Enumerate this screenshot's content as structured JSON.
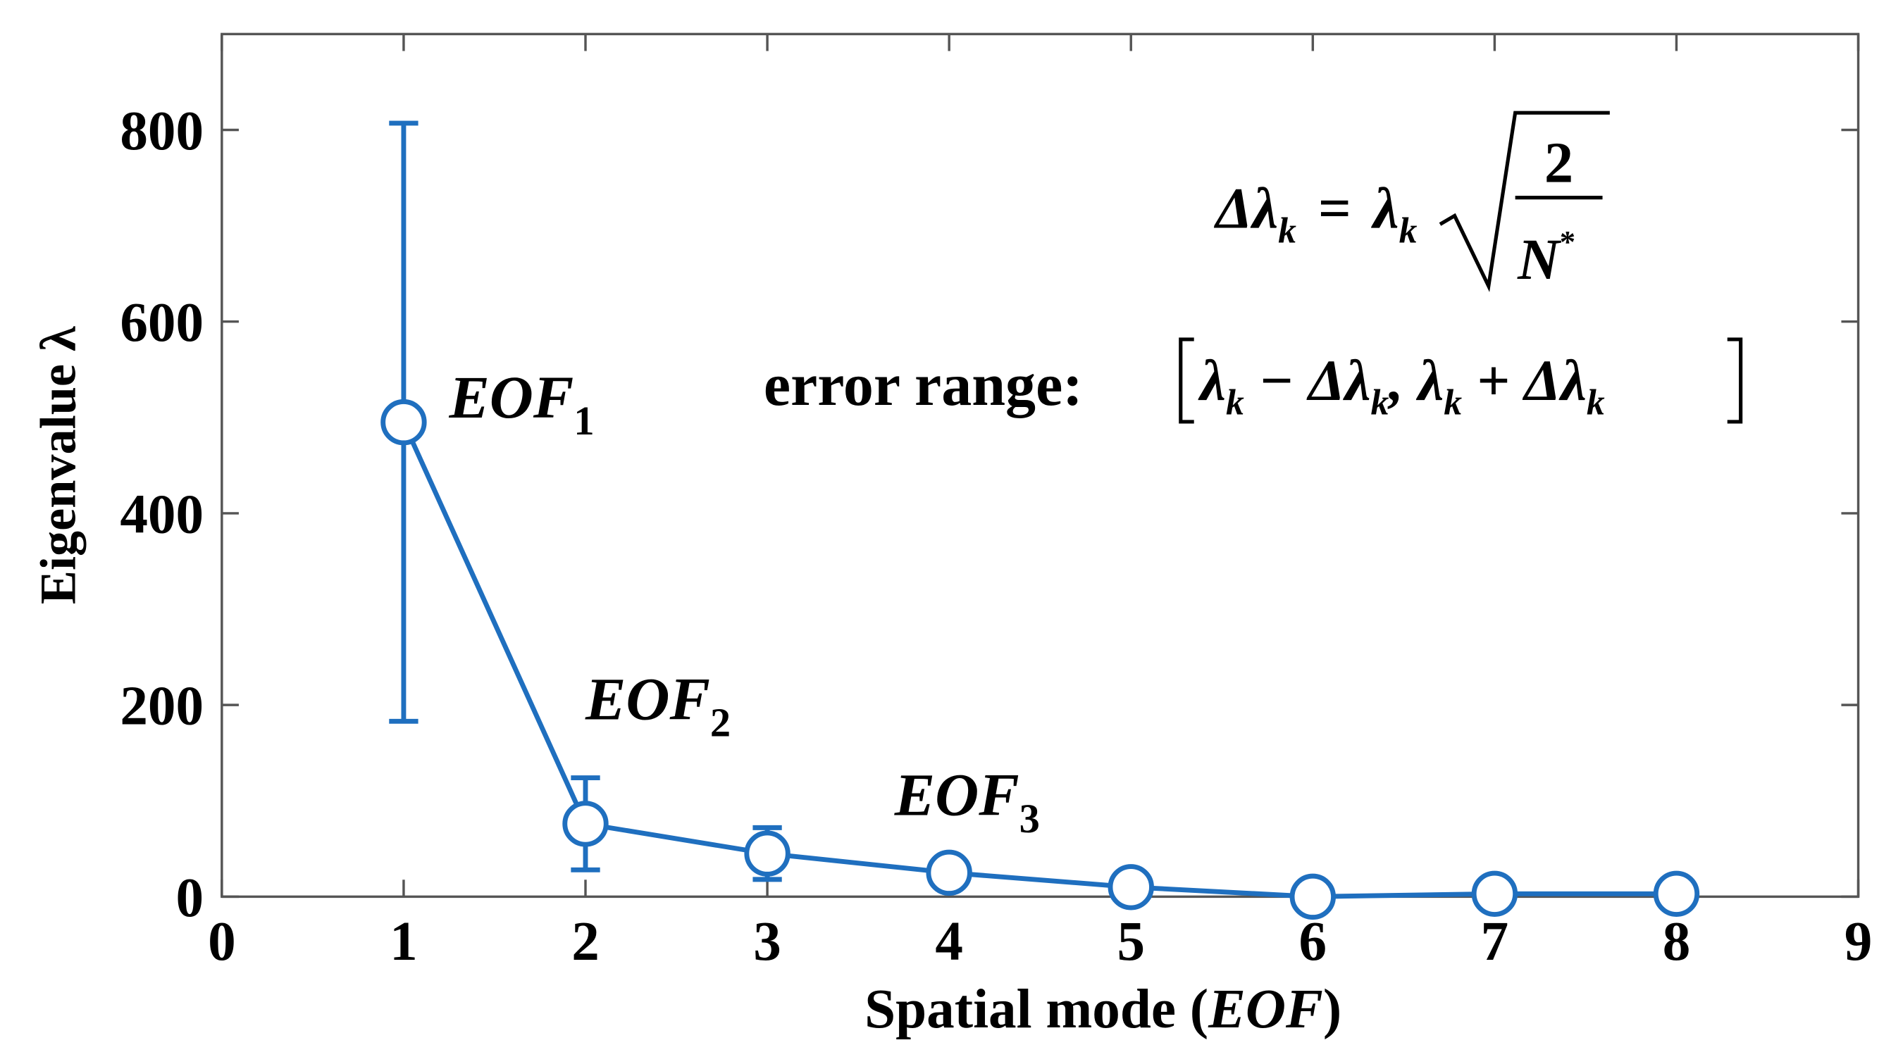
{
  "chart_data": {
    "type": "line",
    "x_label": [
      "Spatial mode (",
      "EOF",
      ")"
    ],
    "y_label": "Eigenvalue λ",
    "x": [
      1,
      2,
      3,
      4,
      5,
      6,
      7,
      8
    ],
    "series": [
      {
        "color": "#1f6fbf",
        "values": [
          495,
          76,
          45,
          25,
          10,
          0,
          3,
          3
        ],
        "errors": [
          312,
          48,
          27,
          null,
          null,
          null,
          null,
          null
        ]
      }
    ],
    "xlim": [
      0,
      9
    ],
    "xticks": [
      0,
      1,
      2,
      3,
      4,
      5,
      6,
      7,
      8,
      9
    ],
    "ylim": [
      0,
      900
    ],
    "yticks": [
      0,
      200,
      400,
      600,
      800
    ],
    "annotations": [
      {
        "text": "EOF",
        "sub": "1",
        "x": 1.25,
        "y": 500
      },
      {
        "text": "EOF",
        "sub": "2",
        "x": 2.0,
        "y": 185
      },
      {
        "text": "EOF",
        "sub": "3",
        "x": 3.7,
        "y": 85
      }
    ],
    "formula": {
      "delta_lambda": "Δλ",
      "sub": "k",
      "equals": "=",
      "lambda": "λ",
      "numerator": "2",
      "denominator": "N",
      "sup": "*"
    },
    "error_range": {
      "label": "error range:",
      "pieces": [
        "λ",
        "k",
        " − Δλ",
        "k",
        ", λ",
        "k",
        " + Δλ",
        "k"
      ]
    }
  }
}
